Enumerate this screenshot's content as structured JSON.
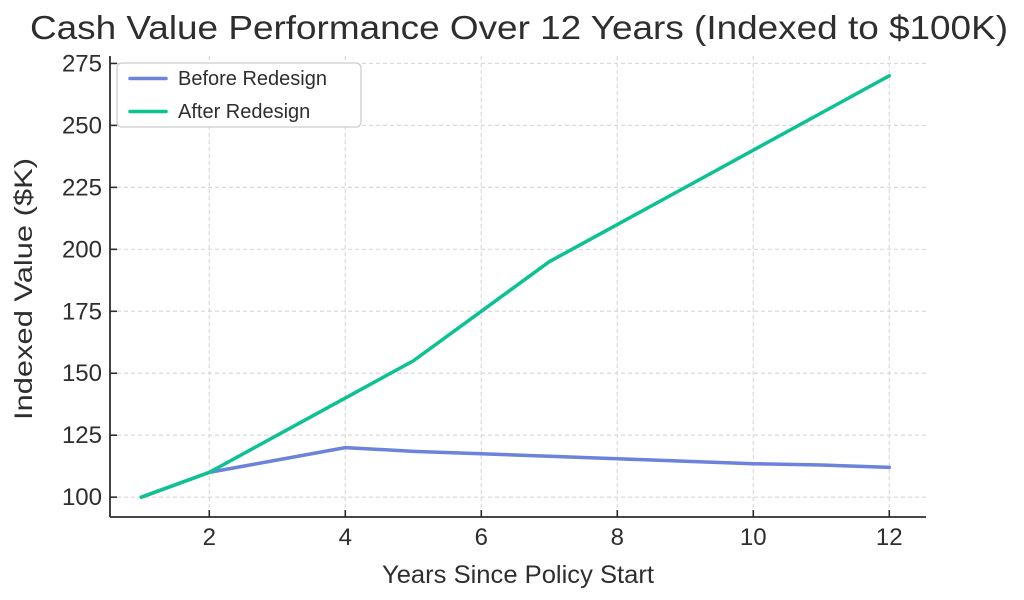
{
  "chart_data": {
    "type": "line",
    "title": "Cash Value Performance Over 12 Years (Indexed to $100K)",
    "xlabel": "Years Since Policy Start",
    "ylabel": "Indexed Value ($K)",
    "x": [
      1,
      2,
      3,
      4,
      5,
      6,
      7,
      8,
      9,
      10,
      11,
      12
    ],
    "series": [
      {
        "name": "Before Redesign",
        "color": "#6C82DB",
        "values": [
          100,
          110,
          115,
          120,
          118.5,
          117.5,
          116.5,
          115.5,
          114.5,
          113.5,
          113,
          112
        ]
      },
      {
        "name": "After Redesign",
        "color": "#0DC292",
        "values": [
          100,
          110,
          125,
          140,
          155,
          175,
          195,
          210,
          225,
          240,
          255,
          270
        ]
      }
    ],
    "xticks": [
      2,
      4,
      6,
      8,
      10,
      12
    ],
    "yticks": [
      100,
      125,
      150,
      175,
      200,
      225,
      250,
      275
    ],
    "xlim": [
      0.54,
      12.54
    ],
    "ylim": [
      92,
      278
    ],
    "grid": true,
    "grid_style": "dashed",
    "legend_position": "upper left",
    "style": {
      "background": "#ffffff",
      "grid_color": "#d9d9d9",
      "spine_color": "#2e2e2e",
      "text_color": "#2e2e2e",
      "line_width": 3.5
    }
  }
}
